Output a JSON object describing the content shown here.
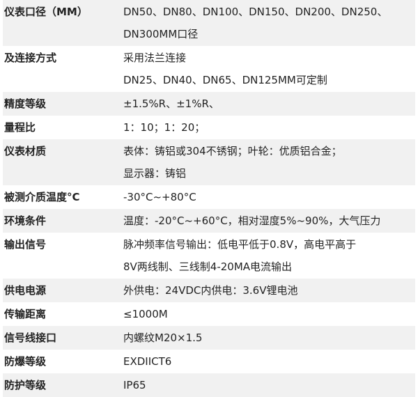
{
  "rows": [
    {
      "label": "仪表口径（MM）",
      "values": [
        "DN50、DN80、DN100、DN150、DN200、DN250、",
        "DN300MM口径"
      ]
    },
    {
      "label": "及连接方式",
      "values": [
        "采用法兰连接",
        "DN25、DN40、DN65、DN125MM可定制"
      ]
    },
    {
      "label": "精度等级",
      "values": [
        "±1.5%R、±1%R、"
      ]
    },
    {
      "label": "量程比",
      "values": [
        "1：10；1：20；"
      ]
    },
    {
      "label": "仪表材质",
      "values": [
        "表体：铸铝或304不锈钢；叶轮：优质铝合金；",
        "显示器：铸铝"
      ]
    },
    {
      "label": "被测介质温度°C",
      "values": [
        "-30°C~+80°C"
      ]
    },
    {
      "label": "环境条件",
      "values": [
        "温度：-20°C~+60°C，相对湿度5%~90%，大气压力"
      ]
    },
    {
      "label": "输出信号",
      "values": [
        "脉冲频率信号输出：低电平低于0.8V，高电平高于",
        "8V两线制、三线制4-20MA电流输出"
      ]
    },
    {
      "label": "供电电源",
      "values": [
        "外供电：24VDC内供电：3.6V锂电池"
      ]
    },
    {
      "label": "传输距离",
      "values": [
        "≤1000M"
      ]
    },
    {
      "label": "信号线接口",
      "values": [
        "内螺纹M20×1.5"
      ]
    },
    {
      "label": "防爆等级",
      "values": [
        "EXDIICT6"
      ]
    },
    {
      "label": "防护等级",
      "values": [
        "IP65"
      ]
    }
  ],
  "colors": {
    "stripe": "#f1f1f1",
    "text": "#222222"
  }
}
